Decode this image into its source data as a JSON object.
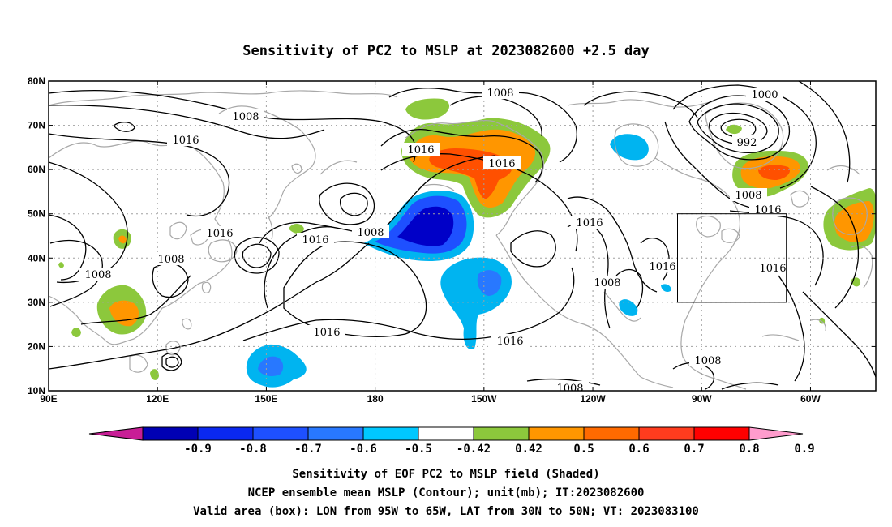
{
  "title": "Sensitivity of PC2 to MSLP at 2023082600 +2.5 day",
  "map": {
    "lon_ticks": [
      "90E",
      "120E",
      "150E",
      "180",
      "150W",
      "120W",
      "90W",
      "60W"
    ],
    "lat_ticks": [
      "80N",
      "70N",
      "60N",
      "50N",
      "40N",
      "30N",
      "20N",
      "10N"
    ],
    "valid_box": {
      "lon_west": "95W",
      "lon_east": "65W",
      "lat_south": "30N",
      "lat_north": "50N"
    },
    "contour_labels": [
      "1008",
      "1008",
      "1008",
      "1008",
      "1008",
      "1008",
      "1008",
      "1008",
      "1008",
      "1016",
      "1016",
      "1016",
      "1016",
      "1016",
      "1016",
      "1016",
      "1016",
      "1016",
      "1016",
      "1000",
      "992"
    ],
    "colors": {
      "neg_strong": "#0000c8",
      "neg_mid": "#1e50ff",
      "neg_light": "#00b4f0",
      "pos_light": "#8cc83c",
      "pos_mid": "#ff9600",
      "pos_strong": "#ff5000",
      "coast": "#a8a8a8"
    }
  },
  "colorbar": {
    "labels": [
      "-0.9",
      "-0.8",
      "-0.7",
      "-0.6",
      "-0.5",
      "-0.42",
      "0.42",
      "0.5",
      "0.6",
      "0.7",
      "0.8",
      "0.9"
    ],
    "colors": [
      "#c81e96",
      "#0000b4",
      "#0a28f0",
      "#1e50ff",
      "#2878ff",
      "#00c8ff",
      "#ffffff",
      "#8cc83c",
      "#ff9600",
      "#ff6a00",
      "#ff3c1e",
      "#ff0000",
      "#ff9ccd"
    ]
  },
  "caption": {
    "line1": "Sensitivity of EOF PC2 to MSLP field (Shaded)",
    "line2": "NCEP ensemble mean MSLP (Contour); unit(mb); IT:2023082600",
    "line3": "Valid area (box): LON from 95W to 65W, LAT from 30N to 50N; VT: 2023083100"
  }
}
